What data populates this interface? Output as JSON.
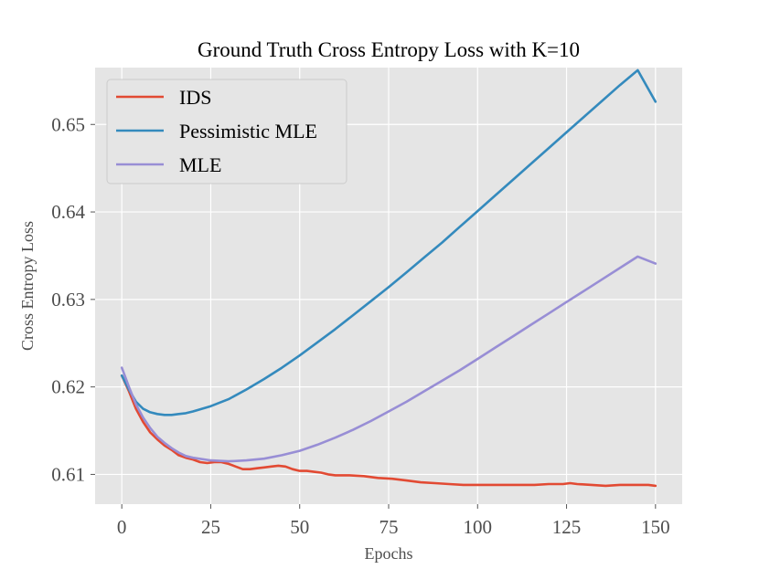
{
  "chart_data": {
    "type": "line",
    "title": "Ground Truth Cross Entropy Loss with K=10",
    "xlabel": "Epochs",
    "ylabel": "Cross Entropy Loss",
    "xlim": [
      -7.5,
      157.5
    ],
    "ylim": [
      0.6066,
      0.6565
    ],
    "xticks": [
      0,
      25,
      50,
      75,
      100,
      125,
      150
    ],
    "xtick_labels": [
      "0",
      "25",
      "50",
      "75",
      "100",
      "125",
      "150"
    ],
    "yticks": [
      0.61,
      0.62,
      0.63,
      0.64,
      0.65
    ],
    "ytick_labels": [
      "0.61",
      "0.62",
      "0.63",
      "0.64",
      "0.65"
    ],
    "grid": true,
    "legend_position": "top-left",
    "background_color": "#e5e5e5",
    "grid_color": "#ffffff",
    "series": [
      {
        "name": "IDS",
        "color": "#e24a33",
        "points": [
          [
            0,
            0.6213
          ],
          [
            2,
            0.6195
          ],
          [
            4,
            0.6175
          ],
          [
            6,
            0.616
          ],
          [
            8,
            0.6148
          ],
          [
            10,
            0.614
          ],
          [
            12,
            0.6133
          ],
          [
            14,
            0.6128
          ],
          [
            16,
            0.6122
          ],
          [
            18,
            0.6119
          ],
          [
            20,
            0.6117
          ],
          [
            22,
            0.6114
          ],
          [
            24,
            0.6113
          ],
          [
            26,
            0.6114
          ],
          [
            28,
            0.6114
          ],
          [
            30,
            0.6112
          ],
          [
            32,
            0.6109
          ],
          [
            34,
            0.6106
          ],
          [
            36,
            0.6106
          ],
          [
            38,
            0.6107
          ],
          [
            40,
            0.6108
          ],
          [
            42,
            0.6109
          ],
          [
            44,
            0.611
          ],
          [
            46,
            0.6109
          ],
          [
            48,
            0.6106
          ],
          [
            50,
            0.6104
          ],
          [
            52,
            0.6104
          ],
          [
            54,
            0.6103
          ],
          [
            56,
            0.6102
          ],
          [
            58,
            0.61
          ],
          [
            60,
            0.6099
          ],
          [
            64,
            0.6099
          ],
          [
            68,
            0.6098
          ],
          [
            72,
            0.6096
          ],
          [
            76,
            0.6095
          ],
          [
            80,
            0.6093
          ],
          [
            84,
            0.6091
          ],
          [
            88,
            0.609
          ],
          [
            92,
            0.6089
          ],
          [
            96,
            0.6088
          ],
          [
            100,
            0.6088
          ],
          [
            104,
            0.6088
          ],
          [
            108,
            0.6088
          ],
          [
            112,
            0.6088
          ],
          [
            116,
            0.6088
          ],
          [
            120,
            0.6089
          ],
          [
            124,
            0.6089
          ],
          [
            126,
            0.609
          ],
          [
            128,
            0.6089
          ],
          [
            132,
            0.6088
          ],
          [
            136,
            0.6087
          ],
          [
            140,
            0.6088
          ],
          [
            144,
            0.6088
          ],
          [
            148,
            0.6088
          ],
          [
            150,
            0.6087
          ]
        ]
      },
      {
        "name": "Pessimistic MLE",
        "color": "#348abd",
        "points": [
          [
            0,
            0.6213
          ],
          [
            2,
            0.6197
          ],
          [
            4,
            0.6183
          ],
          [
            6,
            0.6175
          ],
          [
            8,
            0.6171
          ],
          [
            10,
            0.6169
          ],
          [
            12,
            0.6168
          ],
          [
            14,
            0.6168
          ],
          [
            16,
            0.6169
          ],
          [
            18,
            0.617
          ],
          [
            20,
            0.6172
          ],
          [
            25,
            0.6178
          ],
          [
            30,
            0.6186
          ],
          [
            35,
            0.6197
          ],
          [
            40,
            0.6209
          ],
          [
            45,
            0.6222
          ],
          [
            50,
            0.6236
          ],
          [
            55,
            0.6251
          ],
          [
            60,
            0.6266
          ],
          [
            65,
            0.6282
          ],
          [
            70,
            0.6298
          ],
          [
            75,
            0.6314
          ],
          [
            80,
            0.6331
          ],
          [
            85,
            0.6348
          ],
          [
            90,
            0.6365
          ],
          [
            95,
            0.6383
          ],
          [
            100,
            0.6401
          ],
          [
            105,
            0.6419
          ],
          [
            110,
            0.6437
          ],
          [
            115,
            0.6455
          ],
          [
            120,
            0.6473
          ],
          [
            125,
            0.6491
          ],
          [
            130,
            0.6509
          ],
          [
            135,
            0.6527
          ],
          [
            140,
            0.6545
          ],
          [
            145,
            0.6562
          ],
          [
            150,
            0.6526
          ]
        ]
      },
      {
        "name": "MLE",
        "color": "#988ed5",
        "points": [
          [
            0,
            0.6222
          ],
          [
            2,
            0.62
          ],
          [
            4,
            0.618
          ],
          [
            6,
            0.6165
          ],
          [
            8,
            0.6153
          ],
          [
            10,
            0.6143
          ],
          [
            12,
            0.6136
          ],
          [
            14,
            0.613
          ],
          [
            16,
            0.6125
          ],
          [
            18,
            0.6121
          ],
          [
            20,
            0.6119
          ],
          [
            25,
            0.6116
          ],
          [
            30,
            0.6115
          ],
          [
            35,
            0.6116
          ],
          [
            40,
            0.6118
          ],
          [
            45,
            0.6122
          ],
          [
            50,
            0.6127
          ],
          [
            55,
            0.6134
          ],
          [
            60,
            0.6142
          ],
          [
            65,
            0.6151
          ],
          [
            70,
            0.6161
          ],
          [
            75,
            0.6172
          ],
          [
            80,
            0.6183
          ],
          [
            85,
            0.6195
          ],
          [
            90,
            0.6207
          ],
          [
            95,
            0.6219
          ],
          [
            100,
            0.6232
          ],
          [
            105,
            0.6245
          ],
          [
            110,
            0.6258
          ],
          [
            115,
            0.6271
          ],
          [
            120,
            0.6284
          ],
          [
            125,
            0.6297
          ],
          [
            130,
            0.631
          ],
          [
            135,
            0.6323
          ],
          [
            140,
            0.6336
          ],
          [
            145,
            0.6349
          ],
          [
            150,
            0.6341
          ]
        ]
      }
    ]
  }
}
